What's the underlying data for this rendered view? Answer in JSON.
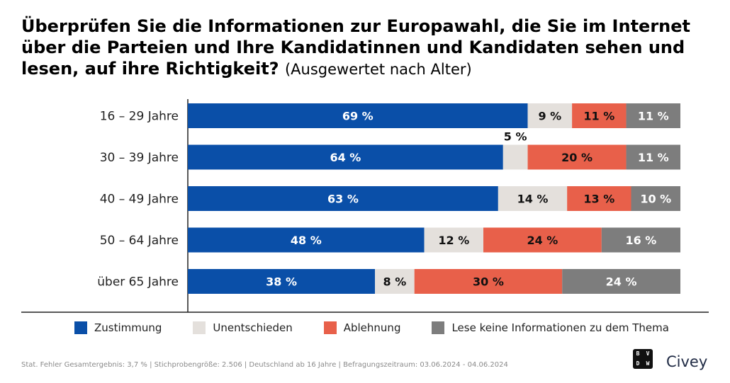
{
  "title": {
    "main": "Überprüfen Sie die Informationen zur Europawahl, die Sie im Internet über die Parteien und Ihre Kandidatinnen und Kandidaten sehen und lesen, auf ihre Richtigkeit?",
    "sub": "(Ausgewertet nach Alter)"
  },
  "chart_data": {
    "type": "bar",
    "orientation": "horizontal-stacked-100",
    "categories": [
      "16 – 29 Jahre",
      "30 – 39 Jahre",
      "40 – 49 Jahre",
      "50 – 64 Jahre",
      "über 65 Jahre"
    ],
    "series": [
      {
        "name": "Zustimmung",
        "color": "#0a4fa8",
        "label_color": "#ffffff",
        "values": [
          69,
          64,
          63,
          48,
          38
        ]
      },
      {
        "name": "Unentschieden",
        "color": "#e4e0dc",
        "label_color": "#111111",
        "values": [
          9,
          5,
          14,
          12,
          8
        ]
      },
      {
        "name": "Ablehnung",
        "color": "#e8604a",
        "label_color": "#111111",
        "values": [
          11,
          20,
          13,
          24,
          30
        ]
      },
      {
        "name": "Lese keine Informationen zu dem Thema",
        "color": "#7d7d7d",
        "label_color": "#ffffff",
        "values": [
          11,
          11,
          10,
          16,
          24
        ]
      }
    ],
    "labels": [
      [
        "69 %",
        "9 %",
        "11 %",
        "11 %"
      ],
      [
        "64 %",
        "5 %",
        "20 %",
        "11 %"
      ],
      [
        "63 %",
        "14 %",
        "13 %",
        "10 %"
      ],
      [
        "48 %",
        "12 %",
        "24 %",
        "16 %"
      ],
      [
        "38 %",
        "8 %",
        "30 %",
        "24 %"
      ]
    ],
    "xlim": [
      0,
      100
    ],
    "legend_position": "bottom"
  },
  "legend": [
    {
      "label": "Zustimmung",
      "color": "#0a4fa8"
    },
    {
      "label": "Unentschieden",
      "color": "#e4e0dc"
    },
    {
      "label": "Ablehnung",
      "color": "#e8604a"
    },
    {
      "label": "Lese keine Informationen zu dem Thema",
      "color": "#7d7d7d"
    }
  ],
  "footer": "Stat. Fehler Gesamtergebnis: 3,7 % | Stichprobengröße: 2.506 | Deutschland ab 16 Jahre | Befragungszeitraum: 03.06.2024 - 04.06.2024",
  "brand": {
    "logo_text": "BVDW",
    "name": "Civey"
  }
}
